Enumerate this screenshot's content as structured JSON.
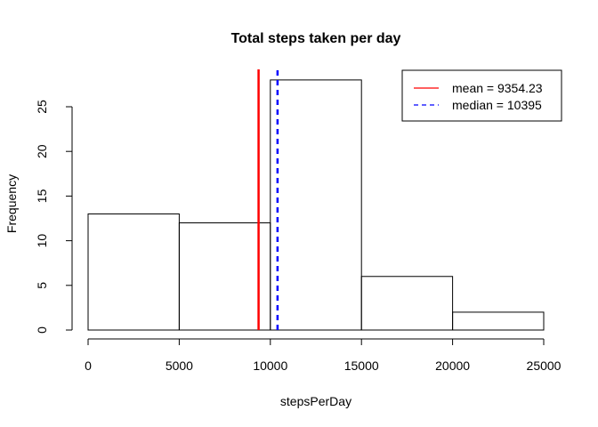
{
  "chart_data": {
    "type": "bar",
    "title": "Total steps taken per day",
    "xlabel": "stepsPerDay",
    "ylabel": "Frequency",
    "xlim": [
      0,
      25000
    ],
    "ylim": [
      0,
      28
    ],
    "x_ticks": [
      0,
      5000,
      10000,
      15000,
      20000,
      25000
    ],
    "x_tick_labels": [
      "0",
      "5000",
      "10000",
      "15000",
      "20000",
      "25000"
    ],
    "y_ticks": [
      0,
      5,
      10,
      15,
      20,
      25
    ],
    "y_tick_labels": [
      "0",
      "5",
      "10",
      "15",
      "20",
      "25"
    ],
    "bins": [
      {
        "from": 0,
        "to": 5000,
        "count": 13
      },
      {
        "from": 5000,
        "to": 10000,
        "count": 12
      },
      {
        "from": 10000,
        "to": 15000,
        "count": 28
      },
      {
        "from": 15000,
        "to": 20000,
        "count": 6
      },
      {
        "from": 20000,
        "to": 25000,
        "count": 2
      }
    ],
    "reference_lines": [
      {
        "name": "mean",
        "value": 9354.23,
        "label": "mean = 9354.23",
        "color": "#ff0000",
        "style": "solid"
      },
      {
        "name": "median",
        "value": 10395,
        "label": "median = 10395",
        "color": "#0000ff",
        "style": "dashed"
      }
    ],
    "legend_position": "top-right",
    "grid": false
  }
}
